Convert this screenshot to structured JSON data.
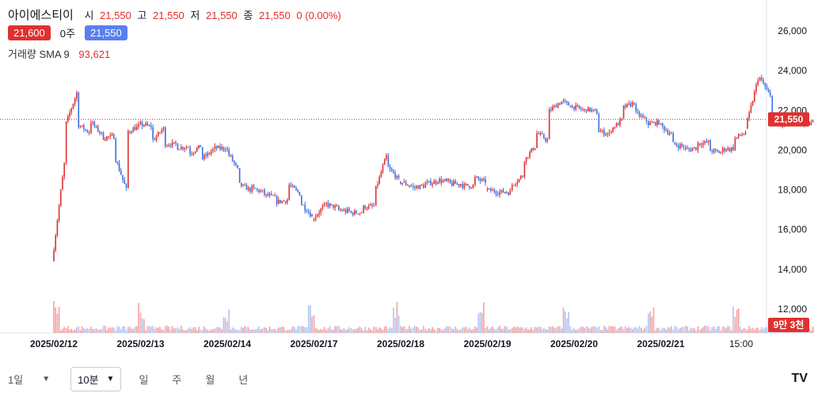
{
  "header": {
    "name": "아이에스티이",
    "open_label": "시",
    "open": "21,550",
    "high_label": "고",
    "high": "21,550",
    "low_label": "저",
    "low": "21,550",
    "close_label": "종",
    "close": "21,550",
    "change": "0 (0.00%)",
    "sell_price": "21,600",
    "spread": "0주",
    "buy_price": "21,550",
    "volume_label": "거래량 SMA 9",
    "volume_value": "93,621"
  },
  "colors": {
    "up": "#e03030",
    "down": "#3a6fe0",
    "buy_tag": "#5a7ff0",
    "grid": "#f0f3fa"
  },
  "bottom_bar": {
    "range_label": "1일",
    "interval_label": "10분",
    "options": [
      "일",
      "주",
      "월",
      "년"
    ],
    "logo": "TV"
  },
  "chart_data": {
    "type": "candlestick",
    "y_ticks": [
      "26,000",
      "24,000",
      "22,000",
      "20,000",
      "18,000",
      "16,000",
      "14,000",
      "12,000"
    ],
    "y_values": [
      26000,
      24000,
      22000,
      20000,
      18000,
      16000,
      14000,
      12000
    ],
    "ylim": [
      11000,
      27000
    ],
    "x_ticks": [
      "2025/02/12",
      "2025/02/13",
      "2025/02/14",
      "2025/02/17",
      "2025/02/18",
      "2025/02/19",
      "2025/02/20",
      "2025/02/21",
      "15:00"
    ],
    "last_price": 21550,
    "last_price_label": "21,550",
    "volume_badge": "9만 3천",
    "day_path": [
      [
        [
          14400,
          19300
        ],
        [
          21100,
          22900
        ],
        [
          21300,
          20900
        ],
        [
          21500,
          20800
        ],
        [
          20600,
          20700
        ],
        [
          19800,
          18000
        ],
        [
          20900,
          21200
        ]
      ],
      [
        [
          21300,
          21200
        ],
        [
          20400,
          21100
        ],
        [
          20300,
          20300
        ],
        [
          20100,
          20200
        ],
        [
          19800,
          20200
        ],
        [
          19500,
          20000
        ],
        [
          20100,
          20100
        ]
      ],
      [
        [
          20100,
          19000
        ],
        [
          18300,
          18000
        ],
        [
          18100,
          17900
        ],
        [
          17800,
          17600
        ],
        [
          17400,
          17500
        ],
        [
          18300,
          17800
        ],
        [
          17400,
          16700
        ]
      ],
      [
        [
          16500,
          17200
        ],
        [
          17300,
          17100
        ],
        [
          17000,
          16900
        ],
        [
          16800,
          16900
        ],
        [
          17100,
          17200
        ],
        [
          17800,
          19700
        ],
        [
          19200,
          18500
        ]
      ],
      [
        [
          18400,
          18200
        ],
        [
          18100,
          18200
        ],
        [
          18300,
          18400
        ],
        [
          18500,
          18400
        ],
        [
          18300,
          18300
        ],
        [
          18200,
          18200
        ],
        [
          18600,
          18400
        ]
      ],
      [
        [
          18000,
          17900
        ],
        [
          17900,
          17900
        ],
        [
          18200,
          18700
        ],
        [
          19400,
          20200
        ],
        [
          20900,
          20500
        ],
        [
          21900,
          22400
        ],
        [
          22500,
          22200
        ]
      ],
      [
        [
          22200,
          22000
        ],
        [
          22100,
          21900
        ],
        [
          21000,
          20800
        ],
        [
          21000,
          21500
        ],
        [
          22100,
          22400
        ],
        [
          21900,
          21500
        ],
        [
          21300,
          21400
        ]
      ],
      [
        [
          21300,
          20800
        ],
        [
          20300,
          20200
        ],
        [
          20000,
          20100
        ],
        [
          20300,
          20400
        ],
        [
          20000,
          19900
        ],
        [
          20000,
          20100
        ],
        [
          20500,
          20900
        ]
      ],
      [
        [
          21100,
          23600
        ],
        [
          23800,
          22700
        ],
        [
          21800,
          21200
        ],
        [
          21600,
          21500
        ],
        [
          21400,
          21350
        ],
        [
          21300,
          21500
        ],
        [
          21550,
          21550
        ]
      ]
    ]
  }
}
